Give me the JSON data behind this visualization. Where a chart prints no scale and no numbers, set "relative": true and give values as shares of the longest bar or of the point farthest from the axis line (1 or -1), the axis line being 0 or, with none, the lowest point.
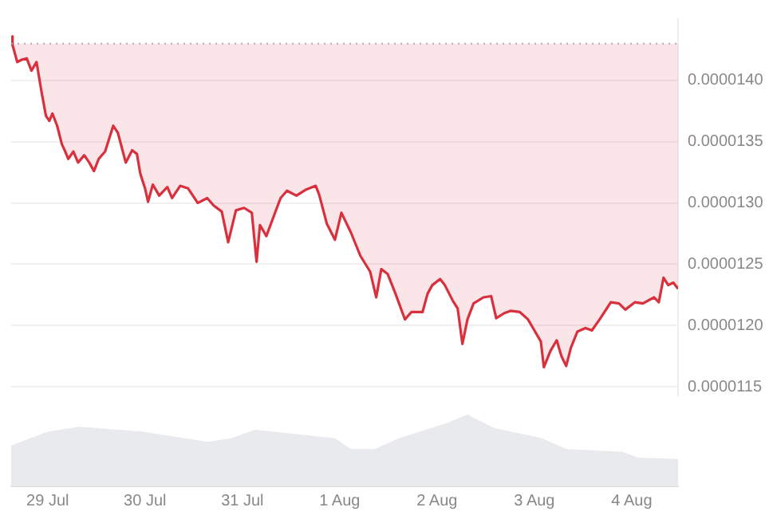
{
  "chart_data": [
    {
      "type": "line",
      "x": [
        "--07-28T15:00",
        "--07-28T15:20",
        "--07-28T16:30",
        "--07-28T17:40",
        "--07-28T18:50",
        "--07-28T20:00",
        "--07-28T21:15",
        "--07-28T22:25",
        "--07-28T23:35",
        "--07-29T00:25",
        "--07-29T01:10",
        "--07-29T02:20",
        "--07-29T03:30",
        "--07-29T04:20",
        "--07-29T05:05",
        "--07-29T06:20",
        "--07-29T07:30",
        "--07-29T09:00",
        "--07-29T10:15",
        "--07-29T11:25",
        "--07-29T12:35",
        "--07-29T14:10",
        "--07-29T16:10",
        "--07-29T17:20",
        "--07-29T19:15",
        "--07-29T20:50",
        "--07-29T22:00",
        "--07-29T22:50",
        "--07-30T00:00",
        "--07-30T00:45",
        "--07-30T01:55",
        "--07-30T03:30",
        "--07-30T05:30",
        "--07-30T06:40",
        "--07-30T08:40",
        "--07-30T10:35",
        "--07-30T13:00",
        "--07-30T15:20",
        "--07-30T16:55",
        "--07-30T18:55",
        "--07-30T20:30",
        "--07-30T22:25",
        "--07-31T00:25",
        "--07-31T02:20",
        "--07-31T03:30",
        "--07-31T04:20",
        "--07-31T05:55",
        "--07-31T07:50",
        "--07-31T09:25",
        "--07-31T11:00",
        "--07-31T13:20",
        "--07-31T15:45",
        "--07-31T18:05",
        "--07-31T18:55",
        "--07-31T20:50",
        "--07-31T22:50",
        "--08-01T00:25",
        "--08-01T02:45",
        "--08-01T05:05",
        "--08-01T07:30",
        "--08-01T09:00",
        "--08-01T10:15",
        "--08-01T11:50",
        "--08-01T13:45",
        "--08-01T16:05",
        "--08-01T17:40",
        "--08-01T20:25",
        "--08-01T21:40",
        "--08-01T22:50",
        "--08-02T00:45",
        "--08-02T01:55",
        "--08-02T03:55",
        "--08-02T05:05",
        "--08-02T06:15",
        "--08-02T07:30",
        "--08-02T09:00",
        "--08-02T11:25",
        "--08-02T13:20",
        "--08-02T14:35",
        "--08-02T16:30",
        "--08-02T18:05",
        "--08-02T20:25",
        "--08-02T22:25",
        "--08-03T00:00",
        "--08-03T01:35",
        "--08-03T02:20",
        "--08-03T03:55",
        "--08-03T05:30",
        "--08-03T06:40",
        "--08-03T07:50",
        "--08-03T09:00",
        "--08-03T10:35",
        "--08-03T12:35",
        "--08-03T14:10",
        "--08-03T16:05",
        "--08-03T18:50",
        "--08-03T20:50",
        "--08-03T22:25",
        "--08-04T00:45",
        "--08-04T02:45",
        "--08-04T05:30",
        "--08-04T06:40",
        "--08-04T07:50",
        "--08-04T09:00",
        "--08-04T10:15",
        "--08-04T11:25"
      ],
      "series": [
        {
          "color": "#d9303e",
          "values": [
            1.436e-05,
            1.429e-05,
            1.415e-05,
            1.417e-05,
            1.418e-05,
            1.408e-05,
            1.415e-05,
            1.392e-05,
            1.371e-05,
            1.367e-05,
            1.373e-05,
            1.363e-05,
            1.348e-05,
            1.342e-05,
            1.336e-05,
            1.342e-05,
            1.333e-05,
            1.339e-05,
            1.333e-05,
            1.326e-05,
            1.336e-05,
            1.342e-05,
            1.363e-05,
            1.357e-05,
            1.333e-05,
            1.343e-05,
            1.34e-05,
            1.324e-05,
            1.312e-05,
            1.301e-05,
            1.315e-05,
            1.306e-05,
            1.313e-05,
            1.304e-05,
            1.314e-05,
            1.312e-05,
            1.3e-05,
            1.304e-05,
            1.298e-05,
            1.293e-05,
            1.268e-05,
            1.294e-05,
            1.296e-05,
            1.292e-05,
            1.252e-05,
            1.282e-05,
            1.273e-05,
            1.29e-05,
            1.304e-05,
            1.31e-05,
            1.306e-05,
            1.311e-05,
            1.314e-05,
            1.307e-05,
            1.283e-05,
            1.27e-05,
            1.292e-05,
            1.276e-05,
            1.257e-05,
            1.244e-05,
            1.223e-05,
            1.246e-05,
            1.242e-05,
            1.226e-05,
            1.205e-05,
            1.211e-05,
            1.211e-05,
            1.226e-05,
            1.233e-05,
            1.238e-05,
            1.233e-05,
            1.22e-05,
            1.214e-05,
            1.185e-05,
            1.205e-05,
            1.218e-05,
            1.223e-05,
            1.224e-05,
            1.206e-05,
            1.21e-05,
            1.212e-05,
            1.211e-05,
            1.205e-05,
            1.196e-05,
            1.187e-05,
            1.166e-05,
            1.179e-05,
            1.188e-05,
            1.175e-05,
            1.167e-05,
            1.182e-05,
            1.195e-05,
            1.198e-05,
            1.196e-05,
            1.205e-05,
            1.219e-05,
            1.218e-05,
            1.213e-05,
            1.219e-05,
            1.218e-05,
            1.223e-05,
            1.219e-05,
            1.239e-05,
            1.233e-05,
            1.235e-05,
            1.23e-05
          ]
        }
      ],
      "xlim": [
        "--07-28T15:00",
        "--08-04T11:25"
      ],
      "xticks": [
        {
          "value": "--07-29",
          "label": "29 Jul"
        },
        {
          "value": "--07-30",
          "label": "30 Jul"
        },
        {
          "value": "--07-31",
          "label": "31 Jul"
        },
        {
          "value": "--08-01",
          "label": "1 Aug"
        },
        {
          "value": "--08-02",
          "label": "2 Aug"
        },
        {
          "value": "--08-03",
          "label": "3 Aug"
        },
        {
          "value": "--08-04",
          "label": "4 Aug"
        }
      ],
      "ylim": [
        1.143e-05,
        1.45e-05
      ],
      "yticks": [
        {
          "value": 1.15e-05,
          "label": "0.0000115"
        },
        {
          "value": 1.2e-05,
          "label": "0.0000120"
        },
        {
          "value": 1.25e-05,
          "label": "0.0000125"
        },
        {
          "value": 1.3e-05,
          "label": "0.0000130"
        },
        {
          "value": 1.35e-05,
          "label": "0.0000135"
        },
        {
          "value": 1.4e-05,
          "label": "0.0000140"
        }
      ],
      "ref_lines": [
        {
          "axis": "y",
          "value": 1.43e-05,
          "color": "#aaaaaa",
          "line_style": "dotted"
        }
      ],
      "grid": "y",
      "tick_labels": "y"
    },
    {
      "type": "area",
      "relative": true,
      "x": [
        "--07-28T15:00",
        "--07-29T00:00",
        "--07-29T07:50",
        "--07-29T23:35",
        "--07-30T15:20",
        "--07-30T21:15",
        "--07-31T03:10",
        "--07-31T22:50",
        "--08-01T02:45",
        "--08-01T08:40",
        "--08-01T14:35",
        "--08-02T02:20",
        "--08-02T07:30",
        "--08-02T14:10",
        "--08-03T01:55",
        "--08-03T07:50",
        "--08-03T21:40",
        "--08-04T01:35",
        "--08-04T11:25"
      ],
      "series": [
        {
          "color": "#e8eaed",
          "values": [
            0.57,
            0.76,
            0.83,
            0.76,
            0.62,
            0.67,
            0.79,
            0.67,
            0.52,
            0.52,
            0.67,
            0.88,
            1,
            0.81,
            0.67,
            0.52,
            0.48,
            0.4,
            0.38
          ]
        }
      ],
      "xlim": [
        "--07-28T15:00",
        "--08-04T11:25"
      ],
      "xticks": [
        {
          "value": "--07-29",
          "label": "29 Jul"
        },
        {
          "value": "--07-30",
          "label": "30 Jul"
        },
        {
          "value": "--07-31",
          "label": "31 Jul"
        },
        {
          "value": "--08-01",
          "label": "1 Aug"
        },
        {
          "value": "--08-02",
          "label": "2 Aug"
        },
        {
          "value": "--08-03",
          "label": "3 Aug"
        },
        {
          "value": "--08-04",
          "label": "4 Aug"
        }
      ],
      "tick_labels": "x"
    }
  ]
}
